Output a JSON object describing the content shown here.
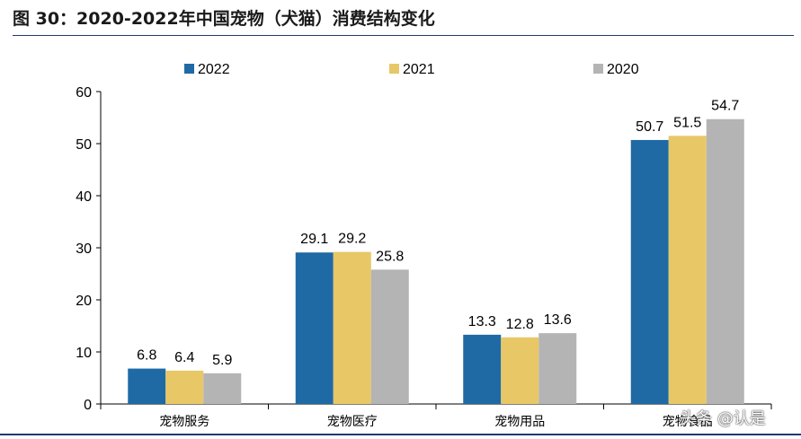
{
  "figure_title": "图 30：2020-2022年中国宠物（犬猫）消费结构变化",
  "watermark": "头条 @认是",
  "chart_data": {
    "type": "bar",
    "categories": [
      "宠物服务",
      "宠物医疗",
      "宠物用品",
      "宠物食品"
    ],
    "series": [
      {
        "name": "2022",
        "color": "#1f6aa5",
        "values": [
          6.8,
          29.1,
          13.3,
          50.7
        ]
      },
      {
        "name": "2021",
        "color": "#e8c766",
        "values": [
          6.4,
          29.2,
          12.8,
          51.5
        ]
      },
      {
        "name": "2020",
        "color": "#b4b4b4",
        "values": [
          5.9,
          25.8,
          13.6,
          54.7
        ]
      }
    ],
    "ylim": [
      0,
      60
    ],
    "yticks": [
      0,
      10,
      20,
      30,
      40,
      50,
      60
    ],
    "data_labels": true,
    "legend_position": "top",
    "grid": false
  }
}
